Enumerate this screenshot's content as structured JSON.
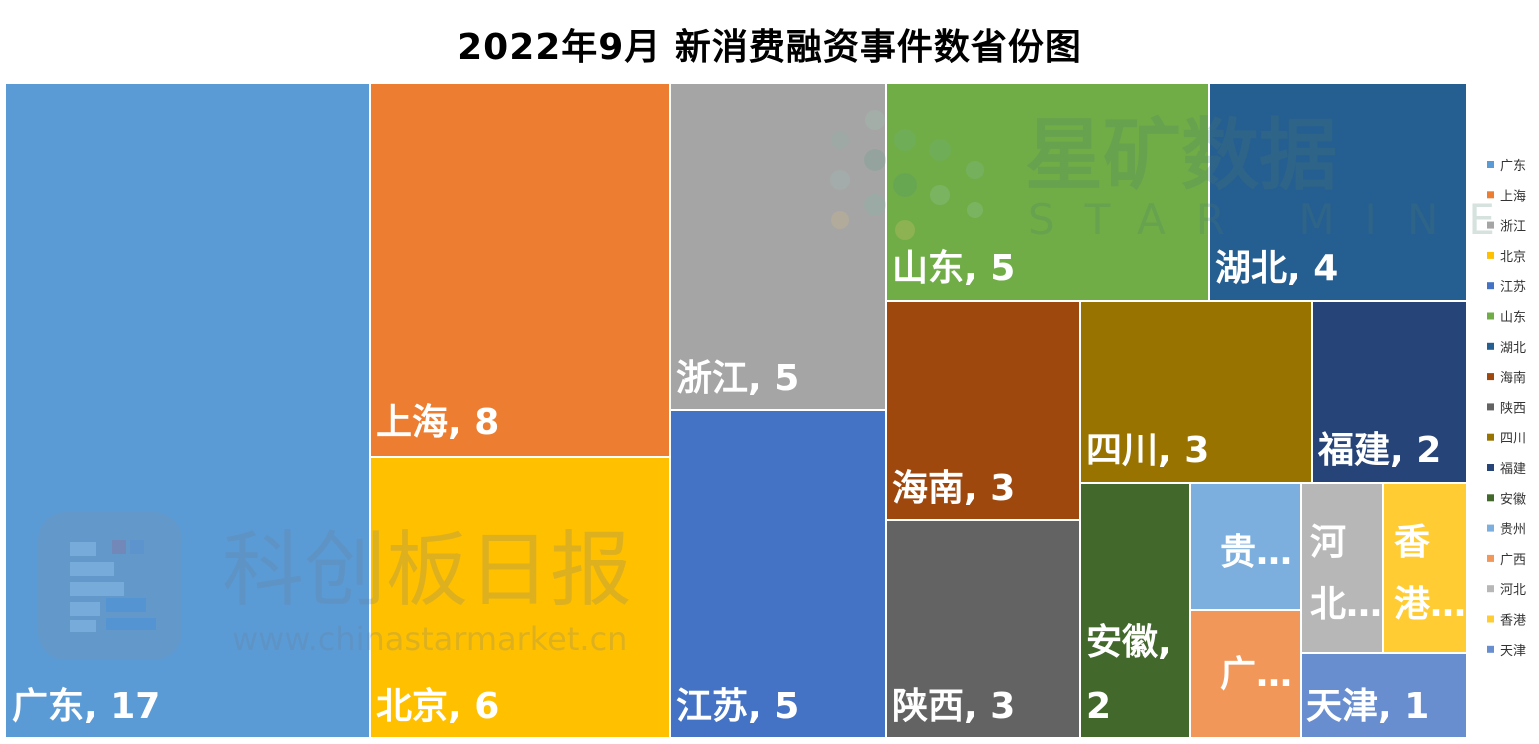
{
  "title": "2022年9月 新消费融资事件数省份图",
  "chart_data": {
    "type": "treemap",
    "title": "2022年9月 新消费融资事件数省份图",
    "legend_position": "right",
    "items": [
      {
        "name": "广东",
        "value": 17,
        "label": "广东, 17",
        "color": "#5b9bd5"
      },
      {
        "name": "上海",
        "value": 8,
        "label": "上海, 8",
        "color": "#ed7d31"
      },
      {
        "name": "浙江",
        "value": 5,
        "label": "浙江, 5",
        "color": "#a5a5a5"
      },
      {
        "name": "北京",
        "value": 6,
        "label": "北京, 6",
        "color": "#ffc000"
      },
      {
        "name": "江苏",
        "value": 5,
        "label": "江苏, 5",
        "color": "#4472c4"
      },
      {
        "name": "山东",
        "value": 5,
        "label": "山东, 5",
        "color": "#70ad47"
      },
      {
        "name": "湖北",
        "value": 4,
        "label": "湖北, 4",
        "color": "#255e91"
      },
      {
        "name": "海南",
        "value": 3,
        "label": "海南, 3",
        "color": "#9e480e"
      },
      {
        "name": "陕西",
        "value": 3,
        "label": "陕西, 3",
        "color": "#636363"
      },
      {
        "name": "四川",
        "value": 3,
        "label": "四川, 3",
        "color": "#997300"
      },
      {
        "name": "福建",
        "value": 2,
        "label": "福建, 2",
        "color": "#264478"
      },
      {
        "name": "安徽",
        "value": 2,
        "label": "安徽, 2",
        "color": "#43682b"
      },
      {
        "name": "贵州",
        "value": 1,
        "label": "贵…",
        "color": "#7cafdd"
      },
      {
        "name": "广西",
        "value": 1,
        "label": "广…",
        "color": "#f1975a"
      },
      {
        "name": "河北",
        "value": 1,
        "label": "河北…",
        "color": "#b7b7b7"
      },
      {
        "name": "香港",
        "value": 1,
        "label": "香港…",
        "color": "#ffcd33"
      },
      {
        "name": "天津",
        "value": 1,
        "label": "天津, 1",
        "color": "#698ed0"
      }
    ],
    "legend": [
      "广东",
      "上海",
      "浙江",
      "北京",
      "江苏",
      "山东",
      "湖北",
      "海南",
      "陕西",
      "四川",
      "福建",
      "安徽",
      "贵州",
      "广西",
      "河北",
      "香港",
      "天津"
    ]
  },
  "watermarks": {
    "starmine_cn": "星矿数据",
    "starmine_en": "STAR MINE",
    "cls_cn": "科创板日报",
    "cls_url": "www.chinastarmarket.cn"
  }
}
